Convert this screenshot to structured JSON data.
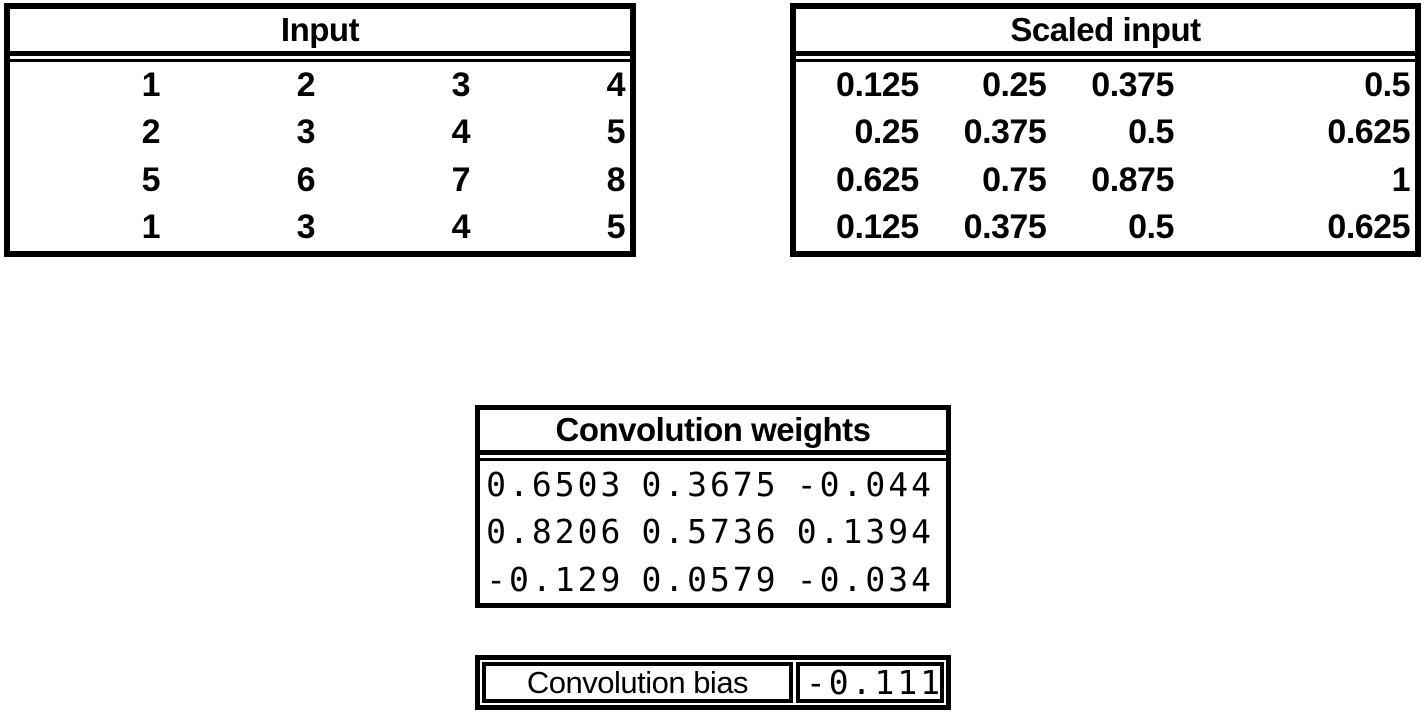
{
  "figure": {
    "background_color": "#ffffff",
    "border_color": "#000000",
    "text_color": "#000000"
  },
  "input_table": {
    "title": "Input",
    "rows": [
      [
        "1",
        "2",
        "3",
        "4"
      ],
      [
        "2",
        "3",
        "4",
        "5"
      ],
      [
        "5",
        "6",
        "7",
        "8"
      ],
      [
        "1",
        "3",
        "4",
        "5"
      ]
    ]
  },
  "scaled_input_table": {
    "title": "Scaled input",
    "rows": [
      [
        "0.125",
        "0.25",
        "0.375",
        "0.5"
      ],
      [
        "0.25",
        "0.375",
        "0.5",
        "0.625"
      ],
      [
        "0.625",
        "0.75",
        "0.875",
        "1"
      ],
      [
        "0.125",
        "0.375",
        "0.5",
        "0.625"
      ]
    ]
  },
  "convolution_weights_table": {
    "title": "Convolution weights",
    "rows": [
      [
        "0.6503",
        "0.3675",
        "-0.044"
      ],
      [
        "0.8206",
        "0.5736",
        "0.1394"
      ],
      [
        "-0.129",
        "0.0579",
        "-0.034"
      ]
    ]
  },
  "convolution_bias_table": {
    "label": "Convolution bias",
    "value": "-0.111"
  }
}
